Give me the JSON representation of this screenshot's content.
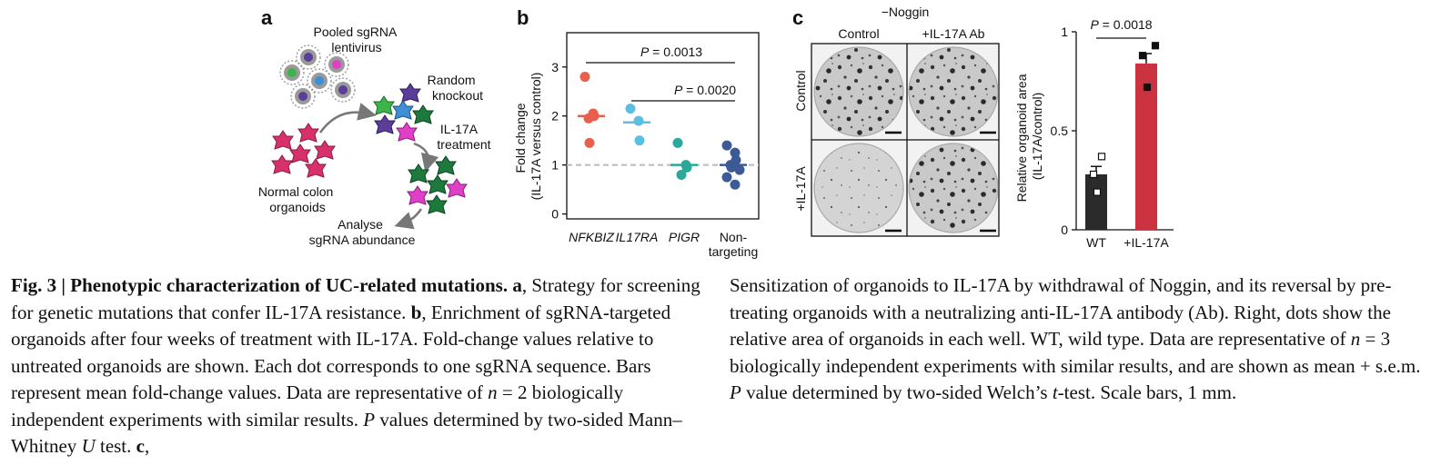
{
  "figure": {
    "panel_a": {
      "letter": "a",
      "labels": {
        "pooled": [
          "Pooled sgRNA",
          "lentivirus"
        ],
        "random": [
          "Random",
          "knockout"
        ],
        "treatment": [
          "IL-17A",
          "treatment"
        ],
        "normal": [
          "Normal colon",
          "organoids"
        ],
        "analyse": [
          "Analyse",
          "sgRNA abundance"
        ]
      },
      "colors": {
        "green": "#3bb54a",
        "magenta": "#e040c8",
        "blue": "#3d8fd6",
        "purple": "#5b3d9a",
        "pink": "#d8306a",
        "darkgreen": "#1e7a3c",
        "virus": "#9a9a9a"
      }
    },
    "panel_b": {
      "letter": "b",
      "pvalues": [
        "P = 0.0013",
        "P = 0.0020"
      ],
      "ylabel_lines": [
        "Fold change",
        "(IL-17A versus control)"
      ]
    },
    "panel_c": {
      "letter": "c",
      "header": "−Noggin",
      "col_labels": [
        "Control",
        "+IL-17A Ab"
      ],
      "row_labels": [
        "Control",
        "+IL-17A"
      ],
      "bar_pvalue": "P = 0.0018",
      "bar_ylabel_lines": [
        "Relative organoid area",
        "(IL-17A/control)"
      ]
    }
  },
  "chart_data": [
    {
      "type": "scatter",
      "panel": "b",
      "ylabel": "Fold change (IL-17A versus control)",
      "ylim": [
        -0.1,
        3.7
      ],
      "yticks": [
        0,
        1,
        2,
        3
      ],
      "reference_line": 1,
      "categories": [
        "NFKBIZ",
        "IL17RA",
        "PIGR",
        "Non-\ntargeting"
      ],
      "colors": [
        "#e8604c",
        "#5bbfe0",
        "#2aa89a",
        "#3c5a96"
      ],
      "points": [
        [
          2.8,
          2.05,
          2.0,
          1.95,
          1.45
        ],
        [
          2.15,
          1.9,
          1.5
        ],
        [
          1.45,
          1.0,
          0.95,
          0.8
        ],
        [
          1.4,
          1.25,
          1.1,
          1.0,
          0.95,
          0.9,
          0.75,
          0.6
        ]
      ],
      "means": [
        2.0,
        1.87,
        1.0,
        1.0
      ],
      "comparisons": [
        {
          "from": 0,
          "to": 3,
          "label": "P = 0.0013",
          "y": 2.05
        },
        {
          "from": 1,
          "to": 3,
          "label": "P = 0.0020",
          "y": 1.45
        }
      ]
    },
    {
      "type": "bar",
      "panel": "c",
      "ylabel": "Relative organoid area (IL-17A/control)",
      "ylim": [
        0,
        1
      ],
      "yticks": [
        0,
        0.5,
        1
      ],
      "categories": [
        "WT",
        "+IL-17A"
      ],
      "values": [
        0.28,
        0.84
      ],
      "errors": [
        0.04,
        0.05
      ],
      "colors": [
        "#2b2b2b",
        "#cc3340"
      ],
      "points": [
        [
          0.37,
          0.28,
          0.19
        ],
        [
          0.93,
          0.88,
          0.72
        ]
      ],
      "comparison": {
        "label": "P = 0.0018"
      }
    }
  ],
  "caption": {
    "left": {
      "fig_no": "Fig. 3",
      "sep": " | ",
      "title": "Phenotypic characterization of UC-related mutations.",
      "a_letter": " a",
      "a_text": ", Strategy for screening for genetic mutations that confer IL-17A resistance. ",
      "b_letter": "b",
      "b_text": ", Enrichment of sgRNA-targeted organoids after four weeks of treatment with IL-17A. Fold-change values relative to untreated organoids are shown. Each dot corresponds to one sgRNA sequence. Bars represent mean fold-change values. Data are representative of ",
      "n_var": "n",
      "n_text": " = 2 biologically independent experiments with similar results. ",
      "p_var": "P",
      "p_text": " values determined by two-sided Mann–Whitney ",
      "u_var": "U",
      "u_text": " test. ",
      "c_letter": "c",
      "c_text": ","
    },
    "right": {
      "text1": "Sensitization of organoids to IL-17A by withdrawal of Noggin, and its reversal by pre-treating organoids with a neutralizing anti-IL-17A antibody (Ab). Right, dots show the relative area of organoids in each well. WT, wild type. Data are representative of ",
      "n_var": "n",
      "text2": " = 3 biologically independent experiments with similar results, and are shown as mean + s.e.m. ",
      "p_var": "P",
      "text3": " value determined by two-sided Welch’s ",
      "t_var": "t",
      "text4": "-test. Scale bars, 1 mm."
    }
  }
}
